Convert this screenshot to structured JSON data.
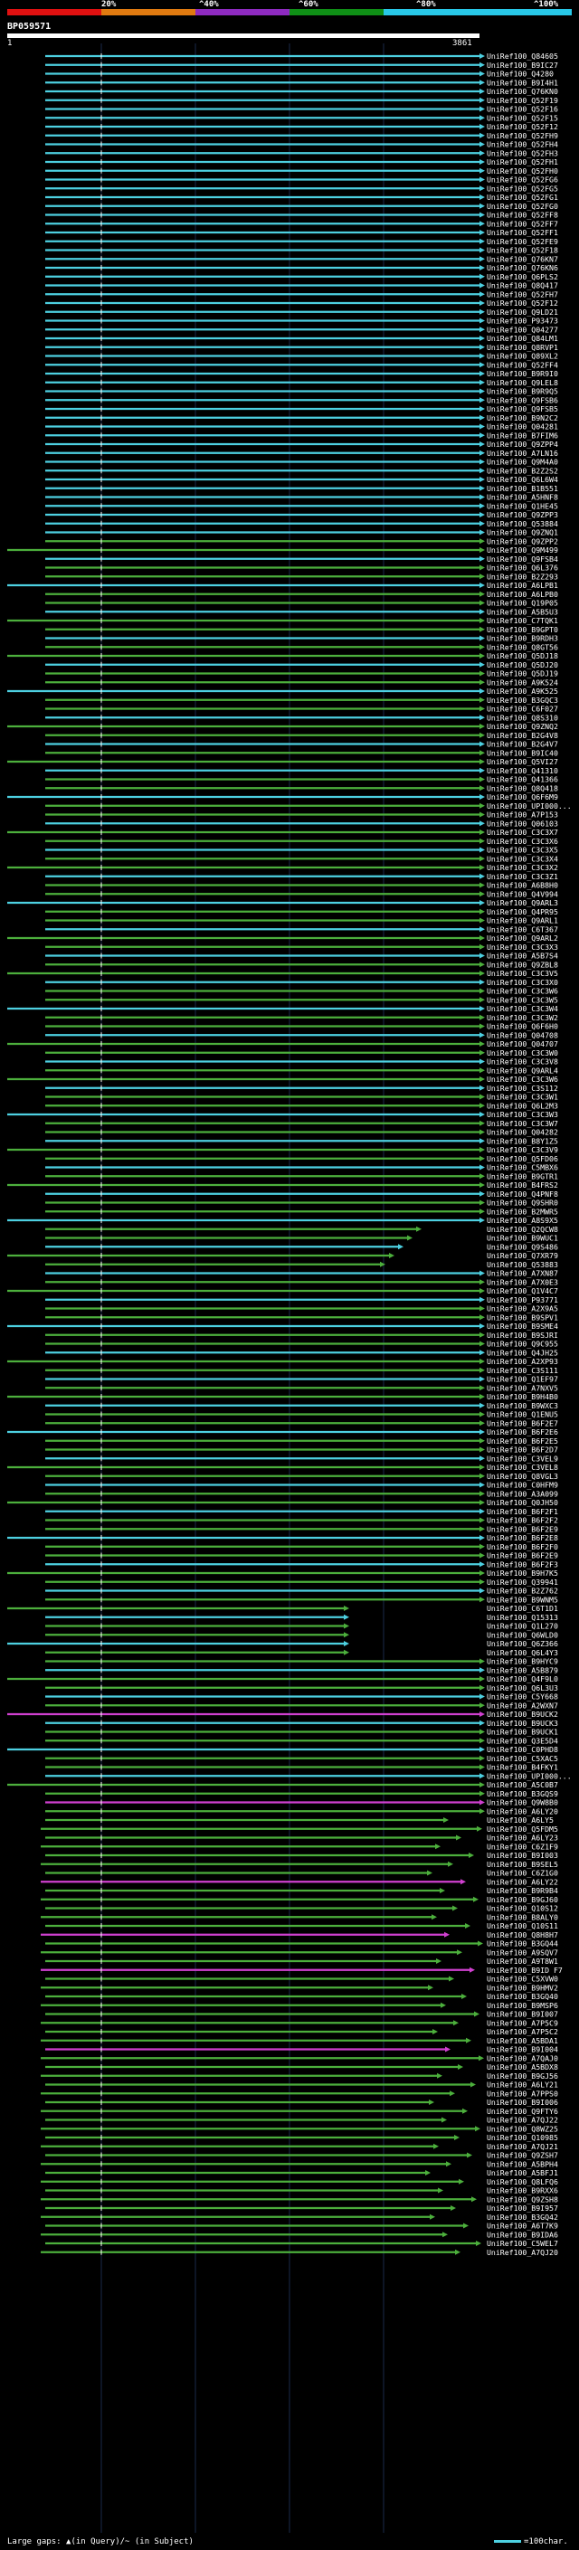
{
  "scale": {
    "marks": [
      "20%",
      "^40%",
      "^60%",
      "^80%",
      "^100%"
    ],
    "colors": [
      "#e01010",
      "#e07a10",
      "#8e2ac0",
      "#0f8f16",
      "#28c8e8"
    ]
  },
  "query": {
    "name": "BP059571",
    "start": "1",
    "end": "3861"
  },
  "legend": {
    "left": "Large gaps: ▲(in Query)/~ (in Subject)",
    "right": "=100char."
  },
  "colors": {
    "cyan": "#4dd0e1",
    "green": "#4caf3c",
    "magenta": "#d040d0",
    "dark": "#0a1a3a"
  },
  "hits": [
    "UniRef100_Q84605",
    "UniRef100_B9IC27",
    "UniRef100_Q4280",
    "UniRef100_B9I4H1",
    "UniRef100_Q76KN0",
    "UniRef100_Q52F19",
    "UniRef100_Q52F16",
    "UniRef100_Q52F15",
    "UniRef100_Q52F12",
    "UniRef100_Q52FH9",
    "UniRef100_Q52FH4",
    "UniRef100_Q52FH3",
    "UniRef100_Q52FH1",
    "UniRef100_Q52FH0",
    "UniRef100_Q52FG6",
    "UniRef100_Q52FG5",
    "UniRef100_Q52FG1",
    "UniRef100_Q52FG0",
    "UniRef100_Q52FF8",
    "UniRef100_Q52FF7",
    "UniRef100_Q52FF1",
    "UniRef100_Q52FE9",
    "UniRef100_Q52F18",
    "UniRef100_Q76KN7",
    "UniRef100_Q76KN6",
    "UniRef100_Q6PLS2",
    "UniRef100_Q8Q417",
    "UniRef100_Q52FH7",
    "UniRef100_Q52F12",
    "UniRef100_Q9LD21",
    "UniRef100_P93473",
    "UniRef100_Q04277",
    "UniRef100_Q84LM1",
    "UniRef100_Q8RVP1",
    "UniRef100_Q89XL2",
    "UniRef100_Q52FF4",
    "UniRef100_B9R9I0",
    "UniRef100_Q9LEL8",
    "UniRef100_B9R9Q5",
    "UniRef100_Q9FSB6",
    "UniRef100_Q9FSB5",
    "UniRef100_B9N2C2",
    "UniRef100_Q04281",
    "UniRef100_B7FIM6",
    "UniRef100_Q9ZPP4",
    "UniRef100_A7LN16",
    "UniRef100_Q9M4A0",
    "UniRef100_B2Z2S2",
    "UniRef100_Q6L6W4",
    "UniRef100_B1B551",
    "UniRef100_A5HNF8",
    "UniRef100_Q1HE45",
    "UniRef100_Q9ZPP3",
    "UniRef100_Q53884",
    "UniRef100_Q9ZNQ1",
    "UniRef100_Q9ZPP2",
    "UniRef100_Q9M499",
    "UniRef100_Q9FSB4",
    "UniRef100_Q6L376",
    "UniRef100_B2Z293",
    "UniRef100_A6LPB1",
    "UniRef100_A6LPB0",
    "UniRef100_Q19P05",
    "UniRef100_A5B5U3",
    "UniRef100_C7TQK1",
    "UniRef100_B9GPT0",
    "UniRef100_B9RDH3",
    "UniRef100_Q8GT56",
    "UniRef100_Q5DJ18",
    "UniRef100_Q5DJ20",
    "UniRef100_Q5DJ19",
    "UniRef100_A9K524",
    "UniRef100_A9K525",
    "UniRef100_B3GQC3",
    "UniRef100_C6F027",
    "UniRef100_Q8S310",
    "UniRef100_Q9ZNQ2",
    "UniRef100_B2G4V8",
    "UniRef100_B2G4V7",
    "UniRef100_B9IC40",
    "UniRef100_Q5VI27",
    "UniRef100_Q41310",
    "UniRef100_Q41366",
    "UniRef100_Q8Q418",
    "UniRef100_Q6F6M9",
    "UniRef100_UPI000...",
    "UniRef100_A7P153",
    "UniRef100_Q06103",
    "UniRef100_C3C3X7",
    "UniRef100_C3C3X6",
    "UniRef100_C3C3X5",
    "UniRef100_C3C3X4",
    "UniRef100_C3C3X2",
    "UniRef100_C3C3Z1",
    "UniRef100_A6B8H0",
    "UniRef100_Q4V994",
    "UniRef100_Q9ARL3",
    "UniRef100_Q4PR95",
    "UniRef100_Q9ARL1",
    "UniRef100_C6T367",
    "UniRef100_Q9ARL2",
    "UniRef100_C3C3X3",
    "UniRef100_A5B7S4",
    "UniRef100_Q9ZBL8",
    "UniRef100_C3C3V5",
    "UniRef100_C3C3X0",
    "UniRef100_C3C3W6",
    "UniRef100_C3C3W5",
    "UniRef100_C3C3W4",
    "UniRef100_C3C3W2",
    "UniRef100_Q6F6H0",
    "UniRef100_Q04708",
    "UniRef100_Q04707",
    "UniRef100_C3C3W0",
    "UniRef100_C3C3V8",
    "UniRef100_Q9ARL4",
    "UniRef100_C3C3W6",
    "UniRef100_C3S112",
    "UniRef100_C3C3W1",
    "UniRef100_Q6L2M3",
    "UniRef100_C3C3W3",
    "UniRef100_C3C3W7",
    "UniRef100_Q04282",
    "UniRef100_B8Y1Z5",
    "UniRef100_C3C3V9",
    "UniRef100_Q5FD06",
    "UniRef100_C5MBX6",
    "UniRef100_B9GTR1",
    "UniRef100_B4FRS2",
    "UniRef100_Q4PNF8",
    "UniRef100_Q9SHR0",
    "UniRef100_B2MWR5",
    "UniRef100_A8S9X5",
    "UniRef100_Q2QCW8",
    "UniRef100_B9WUC1",
    "UniRef100_Q9S486",
    "UniRef100_Q7XR79",
    "UniRef100_Q53883",
    "UniRef100_A7XN87",
    "UniRef100_A7X0E3",
    "UniRef100_Q1V4C7",
    "UniRef100_P93771",
    "UniRef100_A2X9A5",
    "UniRef100_B9SPV1",
    "UniRef100_B9SME4",
    "UniRef100_B9SJRI",
    "UniRef100_Q9C955",
    "UniRef100_Q4JH25",
    "UniRef100_A2XP93",
    "UniRef100_C3S111",
    "UniRef100_Q1EF97",
    "UniRef100_A7NXV5",
    "UniRef100_B9H4B0",
    "UniRef100_B9WXC3",
    "UniRef100_Q1ENU5",
    "UniRef100_B6F2E7",
    "UniRef100_B6F2E6",
    "UniRef100_B6F2E5",
    "UniRef100_B6F2D7",
    "UniRef100_C3VEL9",
    "UniRef100_C3VEL8",
    "UniRef100_Q8VGL3",
    "UniRef100_C0HFM9",
    "UniRef100_A3A099",
    "UniRef100_Q0JH50",
    "UniRef100_B6F2F1",
    "UniRef100_B6F2F2",
    "UniRef100_B6F2E9",
    "UniRef100_B6F2E8",
    "UniRef100_B6F2F0",
    "UniRef100_B6F2E9",
    "UniRef100_B6F2F3",
    "UniRef100_B9H7K5",
    "UniRef100_Q39941",
    "UniRef100_B2Z762",
    "UniRef100_B9WNM5",
    "UniRef100_C6T1D1",
    "UniRef100_Q15313",
    "UniRef100_Q1L270",
    "UniRef100_Q6WLD0",
    "UniRef100_Q6Z366",
    "UniRef100_Q6L4Y3",
    "UniRef100_B9HYC9",
    "UniRef100_A5B879",
    "UniRef100_Q4F9L0",
    "UniRef100_Q6L3U3",
    "UniRef100_C5Y668",
    "UniRef100_A2WXN7",
    "UniRef100_B9UCK2",
    "UniRef100_B9UCK3",
    "UniRef100_B9UCK1",
    "UniRef100_Q3E5D4",
    "UniRef100_C0PHD8",
    "UniRef100_C5XAC5",
    "UniRef100_B4FKY1",
    "UniRef100_UPI000...",
    "UniRef100_A5C0B7",
    "UniRef100_B3GQS9",
    "UniRef100_Q9W8B0",
    "UniRef100_A6LY20",
    "UniRef100_A6LY5",
    "UniRef100_Q5FDM5",
    "UniRef100_A6LY23",
    "UniRef100_C6Z1F9",
    "UniRef100_B9I003",
    "UniRef100_B9SEL5",
    "UniRef100_C6Z1G0",
    "UniRef100_A6LY22",
    "UniRef100_B9R9B4",
    "UniRef100_B9GJ60",
    "UniRef100_Q10S12",
    "UniRef100_B8ALY0",
    "UniRef100_Q10S11",
    "UniRef100_Q8H8H7",
    "UniRef100_B3GQ44",
    "UniRef100_A9SQV7",
    "UniRef100_A9T8W1",
    "UniRef100_B9ID F7",
    "UniRef100_C5XVW0",
    "UniRef100_B9HMV2",
    "UniRef100_B3GQ40",
    "UniRef100_B9MSP6",
    "UniRef100_B9I007",
    "UniRef100_A7P5C9",
    "UniRef100_A7P5C2",
    "UniRef100_A5BDA1",
    "UniRef100_B9I004",
    "UniRef100_A7QAJ0",
    "UniRef100_A5BDX8",
    "UniRef100_B9GJ56",
    "UniRef100_A6LY21",
    "UniRef100_A7PPS0",
    "UniRef100_B9I006",
    "UniRef100_Q9FTY6",
    "UniRef100_A7QJ22",
    "UniRef100_Q8WZ25",
    "UniRef100_Q10985",
    "UniRef100_A7QJ21",
    "UniRef100_Q9ZSH7",
    "UniRef100_A5BPH4",
    "UniRef100_A5BFJ1",
    "UniRef100_Q8LFQ6",
    "UniRef100_B9RXX6",
    "UniRef100_Q9ZSH8",
    "UniRef100_B9I957",
    "UniRef100_B3GQ42",
    "UniRef100_A6T7K9",
    "UniRef100_B9IDA6",
    "UniRef100_C5WEL7",
    "UniRef100_A7QJ20"
  ]
}
